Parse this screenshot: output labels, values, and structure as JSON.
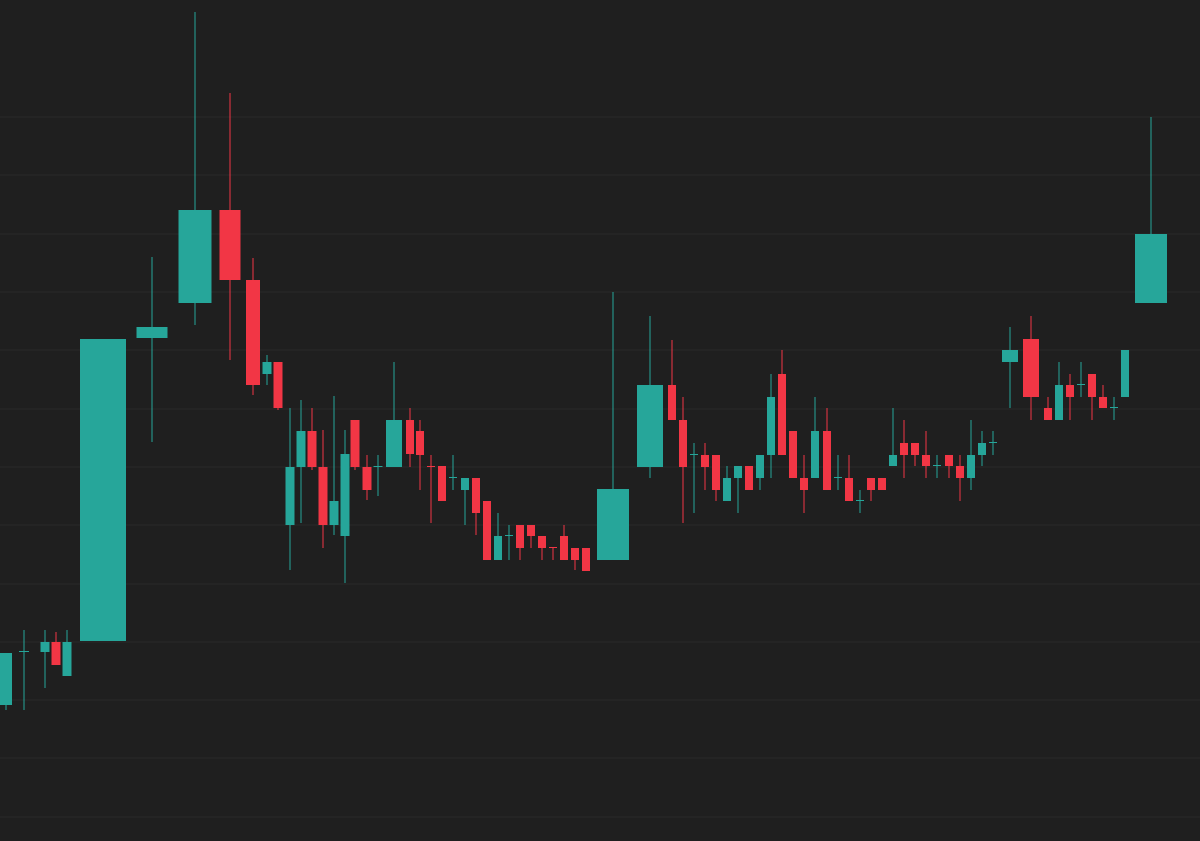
{
  "chart_data": {
    "type": "candlestick",
    "up_color": "#26a69a",
    "down_color": "#f23645",
    "background": "#1f1f1f",
    "grid": true,
    "grid_color": "#2a2a2a",
    "xlim": [
      0,
      1200
    ],
    "ylim": [
      0,
      841
    ],
    "yticks": [
      24,
      83,
      141,
      199,
      257,
      316,
      374,
      432,
      491,
      549,
      607,
      666,
      724
    ],
    "x": [
      6,
      24,
      45,
      56,
      67,
      103,
      152,
      195,
      230,
      253,
      267,
      278,
      290,
      301,
      312,
      323,
      334,
      345,
      355,
      367,
      378,
      394,
      410,
      420,
      431,
      442,
      453,
      465,
      476,
      487,
      498,
      509,
      520,
      531,
      542,
      553,
      564,
      575,
      586,
      613,
      650,
      672,
      683,
      694,
      705,
      716,
      727,
      738,
      749,
      760,
      771,
      782,
      793,
      804,
      815,
      827,
      838,
      849,
      860,
      871,
      882,
      893,
      904,
      915,
      926,
      937,
      949,
      960,
      971,
      982,
      993,
      1010,
      1031,
      1048,
      1059,
      1070,
      1081,
      1092,
      1103,
      1114,
      1125,
      1151
    ],
    "widths": [
      12,
      10,
      9,
      9,
      9,
      46,
      31,
      33,
      21,
      14,
      9,
      9,
      9,
      9,
      9,
      9,
      9,
      9,
      9,
      9,
      9,
      16,
      8,
      8,
      8,
      8,
      8,
      8,
      8,
      8,
      8,
      8,
      8,
      8,
      8,
      8,
      8,
      8,
      8,
      32,
      26,
      8,
      8,
      8,
      8,
      8,
      8,
      8,
      8,
      8,
      8,
      8,
      8,
      8,
      8,
      8,
      8,
      8,
      8,
      8,
      8,
      8,
      8,
      8,
      8,
      8,
      8,
      8,
      8,
      8,
      8,
      16,
      16,
      8,
      8,
      8,
      8,
      8,
      8,
      8,
      8,
      32
    ],
    "open": [
      136,
      189,
      189,
      199,
      165,
      200,
      503,
      538,
      631,
      561,
      467,
      479,
      316,
      374,
      410,
      374,
      316,
      305,
      421,
      374,
      374,
      374,
      421,
      410,
      375,
      375,
      363,
      351,
      363,
      340,
      281,
      305,
      316,
      316,
      305,
      294,
      305,
      293,
      293,
      281,
      374,
      456,
      421,
      386,
      386,
      386,
      340,
      363,
      375,
      363,
      386,
      467,
      410,
      363,
      363,
      410,
      363,
      363,
      340,
      363,
      363,
      375,
      398,
      398,
      386,
      375,
      386,
      375,
      363,
      386,
      398,
      479,
      502,
      433,
      421,
      456,
      456,
      467,
      444,
      433,
      444,
      538
    ],
    "high": [
      188,
      211,
      211,
      209,
      211,
      502,
      584,
      829,
      748,
      583,
      486,
      479,
      433,
      441,
      433,
      411,
      445,
      411,
      421,
      386,
      386,
      479,
      433,
      421,
      386,
      375,
      386,
      363,
      363,
      340,
      328,
      316,
      316,
      316,
      305,
      294,
      316,
      293,
      293,
      549,
      525,
      501,
      444,
      398,
      398,
      386,
      375,
      375,
      375,
      386,
      467,
      491,
      410,
      386,
      444,
      433,
      386,
      386,
      351,
      363,
      363,
      433,
      421,
      398,
      410,
      386,
      386,
      386,
      421,
      410,
      410,
      514,
      525,
      444,
      479,
      467,
      479,
      467,
      456,
      444,
      491,
      724
    ],
    "low": [
      131,
      131,
      153,
      176,
      165,
      200,
      399,
      516,
      481,
      446,
      456,
      431,
      271,
      318,
      371,
      293,
      306,
      258,
      371,
      341,
      345,
      374,
      374,
      351,
      318,
      340,
      351,
      316,
      306,
      281,
      281,
      281,
      281,
      293,
      281,
      281,
      281,
      271,
      270,
      281,
      363,
      421,
      318,
      328,
      351,
      340,
      340,
      328,
      351,
      351,
      363,
      386,
      363,
      328,
      363,
      351,
      351,
      340,
      328,
      340,
      351,
      375,
      363,
      375,
      363,
      363,
      363,
      340,
      351,
      375,
      386,
      433,
      421,
      421,
      421,
      421,
      444,
      421,
      433,
      421,
      444,
      538
    ],
    "close": [
      188,
      190,
      199,
      176,
      199,
      502,
      514,
      631,
      561,
      456,
      479,
      433,
      374,
      410,
      374,
      316,
      340,
      387,
      374,
      351,
      375,
      421,
      387,
      386,
      374,
      340,
      364,
      363,
      328,
      281,
      305,
      306,
      293,
      305,
      293,
      293,
      281,
      281,
      270,
      352,
      456,
      421,
      374,
      387,
      374,
      351,
      363,
      375,
      351,
      386,
      444,
      386,
      363,
      351,
      410,
      351,
      364,
      340,
      341,
      351,
      351,
      386,
      386,
      386,
      375,
      376,
      375,
      363,
      386,
      398,
      399,
      491,
      444,
      421,
      456,
      444,
      457,
      444,
      433,
      434,
      491,
      607
    ]
  }
}
